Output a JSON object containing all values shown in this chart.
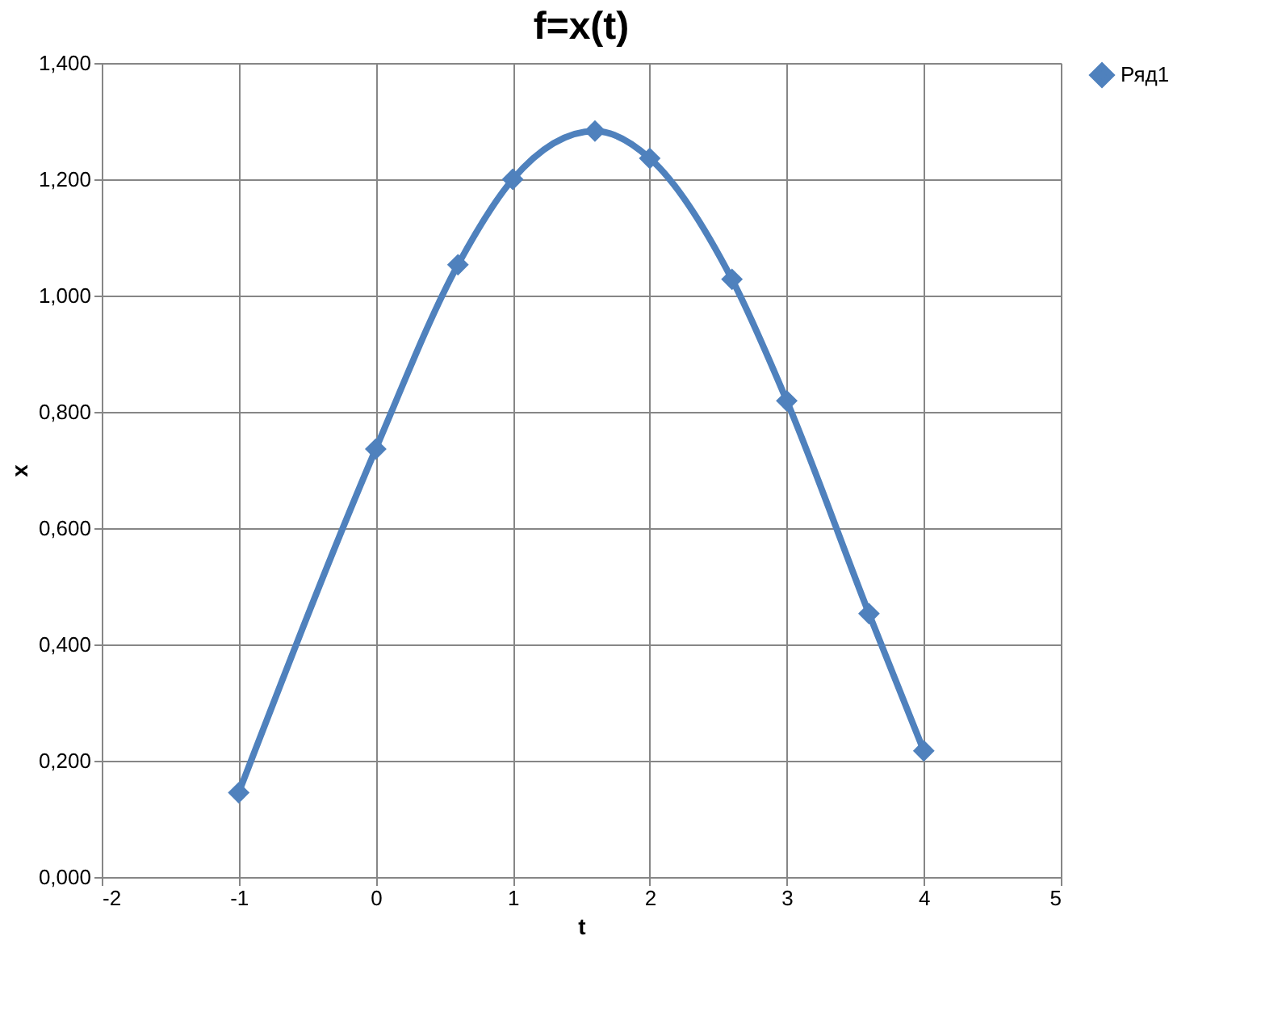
{
  "chart_data": {
    "type": "line",
    "title": "f=x(t)",
    "xlabel": "t",
    "ylabel": "x",
    "x": [
      -1,
      0,
      0.6,
      1,
      1.6,
      2,
      2.6,
      3,
      3.6,
      4
    ],
    "series": [
      {
        "name": "Ряд1",
        "color": "#4f81bd",
        "values": [
          0.145,
          0.736,
          1.053,
          1.2,
          1.283,
          1.236,
          1.028,
          0.819,
          0.453,
          0.217
        ]
      }
    ],
    "xlim": [
      -2,
      5
    ],
    "xticks": [
      -2,
      -1,
      0,
      1,
      2,
      3,
      4,
      5
    ],
    "ylim": [
      0,
      1.4
    ],
    "yticks": [
      {
        "value": 0,
        "label": "0,000"
      },
      {
        "value": 0.2,
        "label": "0,200"
      },
      {
        "value": 0.4,
        "label": "0,400"
      },
      {
        "value": 0.6,
        "label": "0,600"
      },
      {
        "value": 0.8,
        "label": "0,800"
      },
      {
        "value": 1.0,
        "label": "1,000"
      },
      {
        "value": 1.2,
        "label": "1,200"
      },
      {
        "value": 1.4,
        "label": "1,400"
      }
    ],
    "grid": true,
    "legend": "right",
    "marker": "diamond",
    "line_style": "solid"
  }
}
